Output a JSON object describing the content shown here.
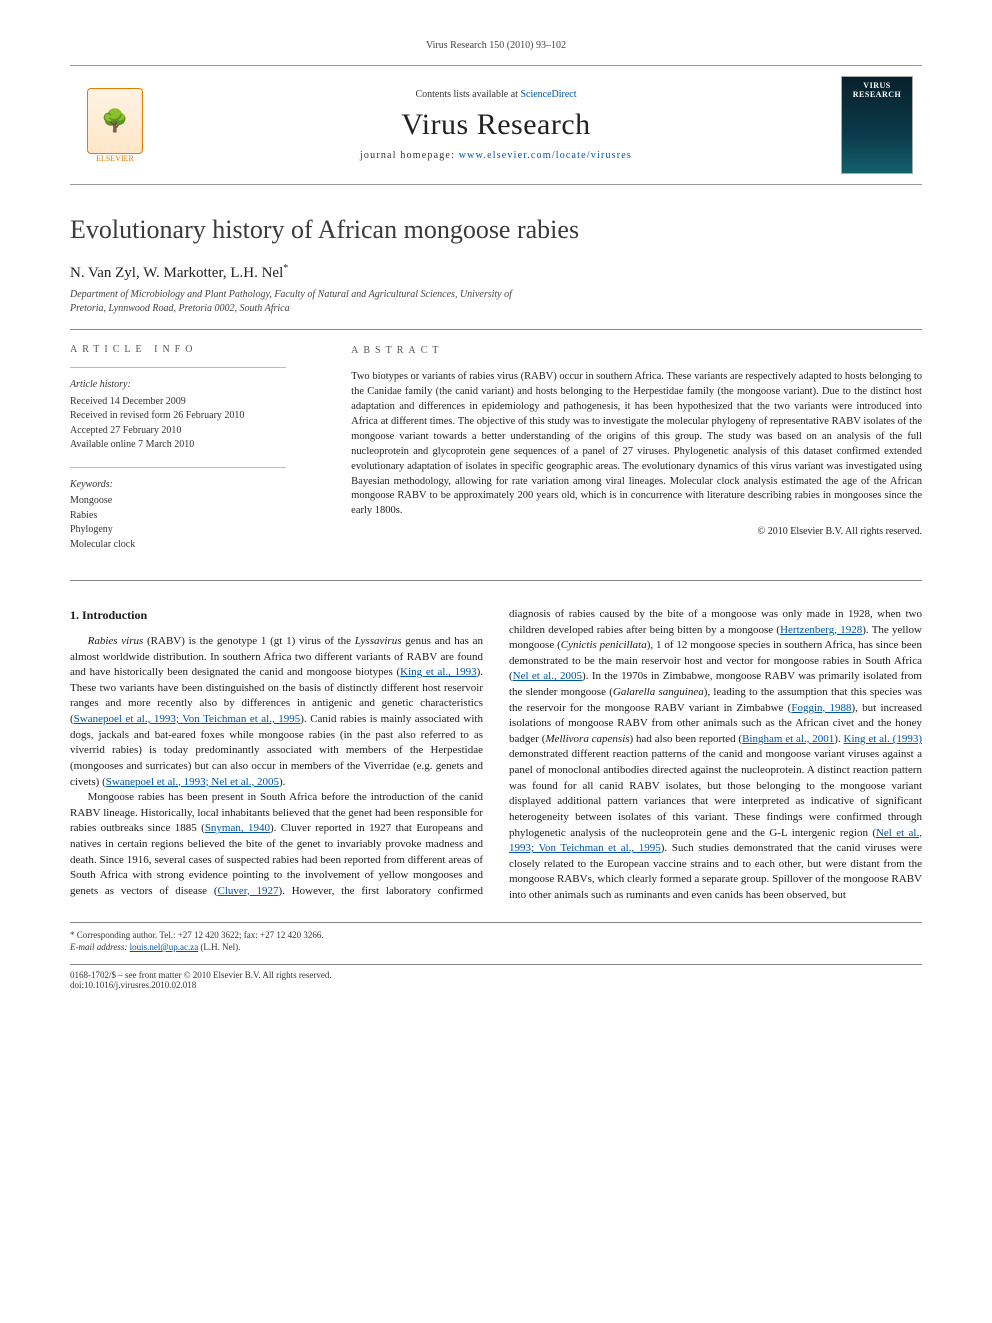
{
  "runningHeader": "Virus Research 150 (2010) 93–102",
  "contentsLine": {
    "prefix": "Contents lists available at ",
    "linkText": "ScienceDirect"
  },
  "journalTitle": "Virus Research",
  "journalHomepage": {
    "prefix": "journal homepage: ",
    "url": "www.elsevier.com/locate/virusres"
  },
  "publisherName": "ELSEVIER",
  "coverBanner": "VIRUS RESEARCH",
  "articleTitle": "Evolutionary history of African mongoose rabies",
  "authorsLine": "N. Van Zyl, W. Markotter, L.H. Nel",
  "corrMark": "*",
  "affiliation": "Department of Microbiology and Plant Pathology, Faculty of Natural and Agricultural Sciences, University of Pretoria, Lynnwood Road, Pretoria 0002, South Africa",
  "infoHeading": "article info",
  "absHeading": "abstract",
  "history": {
    "label": "Article history:",
    "received": "Received 14 December 2009",
    "revised": "Received in revised form 26 February 2010",
    "accepted": "Accepted 27 February 2010",
    "online": "Available online 7 March 2010"
  },
  "keywords": {
    "label": "Keywords:",
    "items": [
      "Mongoose",
      "Rabies",
      "Phylogeny",
      "Molecular clock"
    ]
  },
  "abstract": "Two biotypes or variants of rabies virus (RABV) occur in southern Africa. These variants are respectively adapted to hosts belonging to the Canidae family (the canid variant) and hosts belonging to the Herpestidae family (the mongoose variant). Due to the distinct host adaptation and differences in epidemiology and pathogenesis, it has been hypothesized that the two variants were introduced into Africa at different times. The objective of this study was to investigate the molecular phylogeny of representative RABV isolates of the mongoose variant towards a better understanding of the origins of this group. The study was based on an analysis of the full nucleoprotein and glycoprotein gene sequences of a panel of 27 viruses. Phylogenetic analysis of this dataset confirmed extended evolutionary adaptation of isolates in specific geographic areas. The evolutionary dynamics of this virus variant was investigated using Bayesian methodology, allowing for rate variation among viral lineages. Molecular clock analysis estimated the age of the African mongoose RABV to be approximately 200 years old, which is in concurrence with literature describing rabies in mongooses since the early 1800s.",
  "copyrightAbs": "© 2010 Elsevier B.V. All rights reserved.",
  "section1": {
    "heading": "1.  Introduction",
    "p1a": "Rabies virus",
    "p1b": " (RABV) is the genotype 1 (gt 1) virus of the ",
    "p1c": "Lyssavirus",
    "p1d": " genus and has an almost worldwide distribution. In southern Africa two different variants of RABV are found and have historically been designated the canid and mongoose biotypes (",
    "c1": "King et al., 1993",
    "p1e": "). These two variants have been distinguished on the basis of distinctly different host reservoir ranges and more recently also by differences in antigenic and genetic characteristics (",
    "c2": "Swanepoel et al., 1993; Von Teichman et al., 1995",
    "p1f": "). Canid rabies is mainly associated with dogs, jackals and bat-eared foxes while mongoose rabies (in the past also referred to as viverrid rabies) is today predominantly associated with members of the Herpestidae (mongooses and surricates) but can also occur in members of the Viverridae (e.g. genets and civets) (",
    "c3": "Swanepoel et al., 1993; Nel et al., 2005",
    "p1g": ").",
    "p2a": "Mongoose rabies has been present in South Africa before the introduction of the canid RABV lineage. Historically, local inhabitants believed that the genet had been responsible for rabies outbreaks since 1885 (",
    "c4": "Snyman, 1940",
    "p2b": "). Cluver reported in 1927 that Europeans and natives in certain regions believed the bite of the genet to invariably provoke madness and death. Since 1916, several cases of suspected rabies had been reported from different areas of South Africa with strong evidence pointing to the involvement of yellow mongooses and genets as vectors of disease (",
    "c5": "Cluver, 1927",
    "p2c": "). However, the first laboratory confirmed diagnosis of rabies caused by the bite of a mongoose was only made in 1928, when two children developed rabies after being bitten by a mongoose (",
    "c6": "Hertzenberg, 1928",
    "p2d": "). The yellow mongoose (",
    "s1": "Cynictis penicillata",
    "p2e": "), 1 of 12 mongoose species in southern Africa, has since been demonstrated to be the main reservoir host and vector for mongoose rabies in South Africa (",
    "c7": "Nel et al., 2005",
    "p2f": "). In the 1970s in Zimbabwe, mongoose RABV was primarily isolated from the slender mongoose (",
    "s2": "Galarella sanguinea",
    "p2g": "), leading to the assumption that this species was the reservoir for the mongoose RABV variant in Zimbabwe (",
    "c8": "Foggin, 1988",
    "p2h": "), but increased isolations of mongoose RABV from other animals such as the African civet and the honey badger (",
    "s3": "Mellivora capensis",
    "p2i": ") had also been reported (",
    "c9": "Bingham et al., 2001",
    "p2j": "). ",
    "c10": "King et al. (1993)",
    "p2k": " demonstrated different reaction patterns of the canid and mongoose variant viruses against a panel of monoclonal antibodies directed against the nucleoprotein. A distinct reaction pattern was found for all canid RABV isolates, but those belonging to the mongoose variant displayed additional pattern variances that were interpreted as indicative of significant heterogeneity between isolates of this variant. These findings were confirmed through phylogenetic analysis of the nucleoprotein gene and the G-L intergenic region (",
    "c11": "Nel et al., 1993; Von Teichman et al., 1995",
    "p2l": "). Such studies demonstrated that the canid viruses were closely related to the European vaccine strains and to each other, but were distant from the mongoose RABVs, which clearly formed a separate group. Spillover of the mongoose RABV into other animals such as ruminants and even canids has been observed, but"
  },
  "footnote": {
    "corr": "* Corresponding author. Tel.: +27 12 420 3622; fax: +27 12 420 3266.",
    "emailLabel": "E-mail address:",
    "email": "louis.nel@up.ac.za",
    "emailWho": "(L.H. Nel)."
  },
  "bottom": {
    "line1": "0168-1702/$ – see front matter © 2010 Elsevier B.V. All rights reserved.",
    "line2": "doi:10.1016/j.virusres.2010.02.018"
  }
}
